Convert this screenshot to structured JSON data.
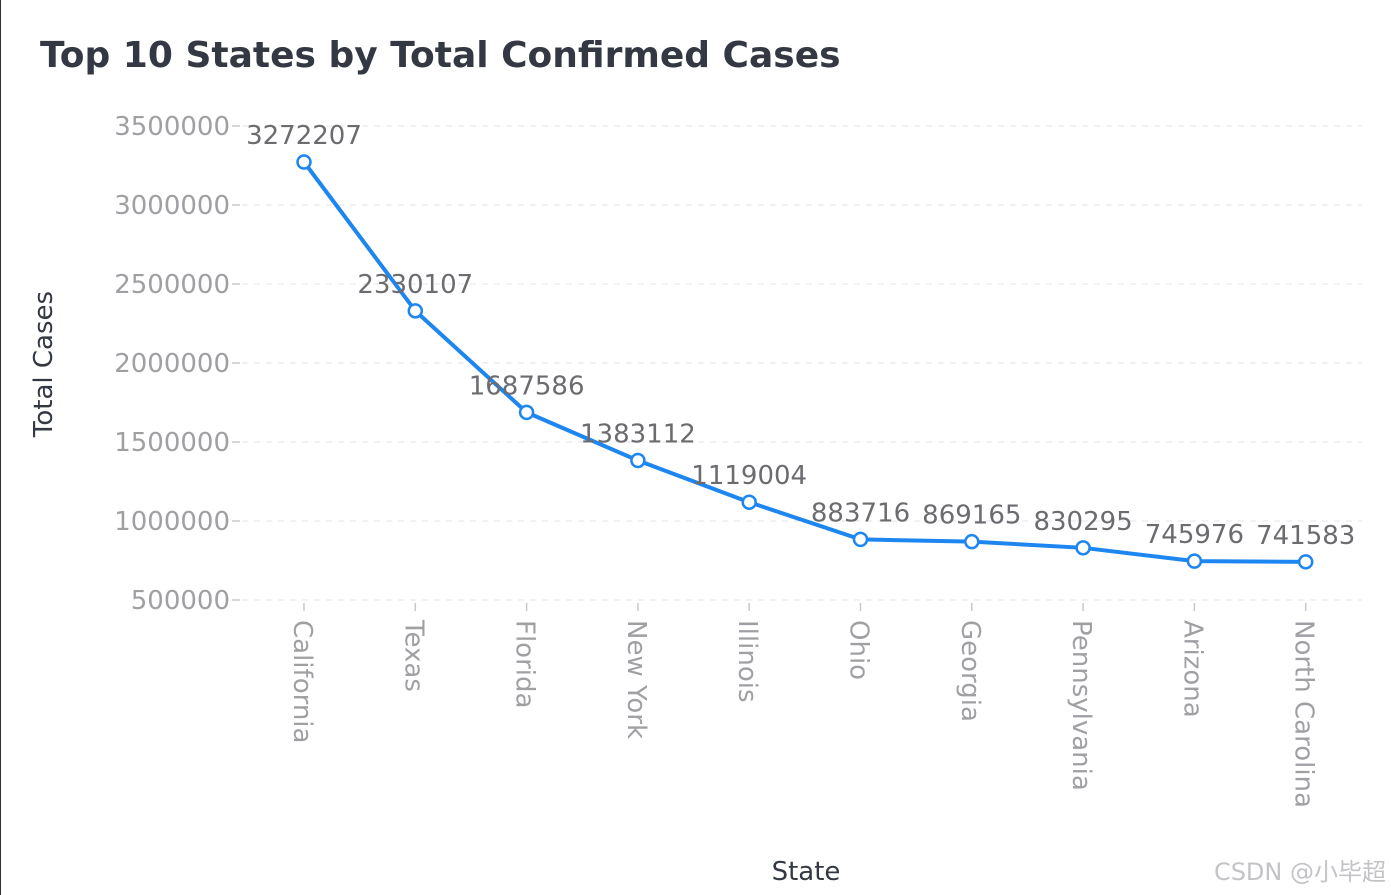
{
  "chart_data": {
    "type": "line",
    "title": "Top 10 States by Total Confirmed Cases",
    "xlabel": "State",
    "ylabel": "Total Cases",
    "categories": [
      "California",
      "Texas",
      "Florida",
      "New York",
      "Illinois",
      "Ohio",
      "Georgia",
      "Pennsylvania",
      "Arizona",
      "North Carolina"
    ],
    "values": [
      3272207,
      2330107,
      1687586,
      1383112,
      1119004,
      883716,
      869165,
      830295,
      745976,
      741583
    ],
    "ylim": [
      500000,
      3500000
    ],
    "yticks": [
      500000,
      1000000,
      1500000,
      2000000,
      2500000,
      3000000,
      3500000
    ],
    "grid": "horizontal-dashed",
    "line_color": "#1e86f0",
    "marker": "hollow-circle",
    "data_labels": true
  },
  "watermark": "CSDN @小毕超"
}
